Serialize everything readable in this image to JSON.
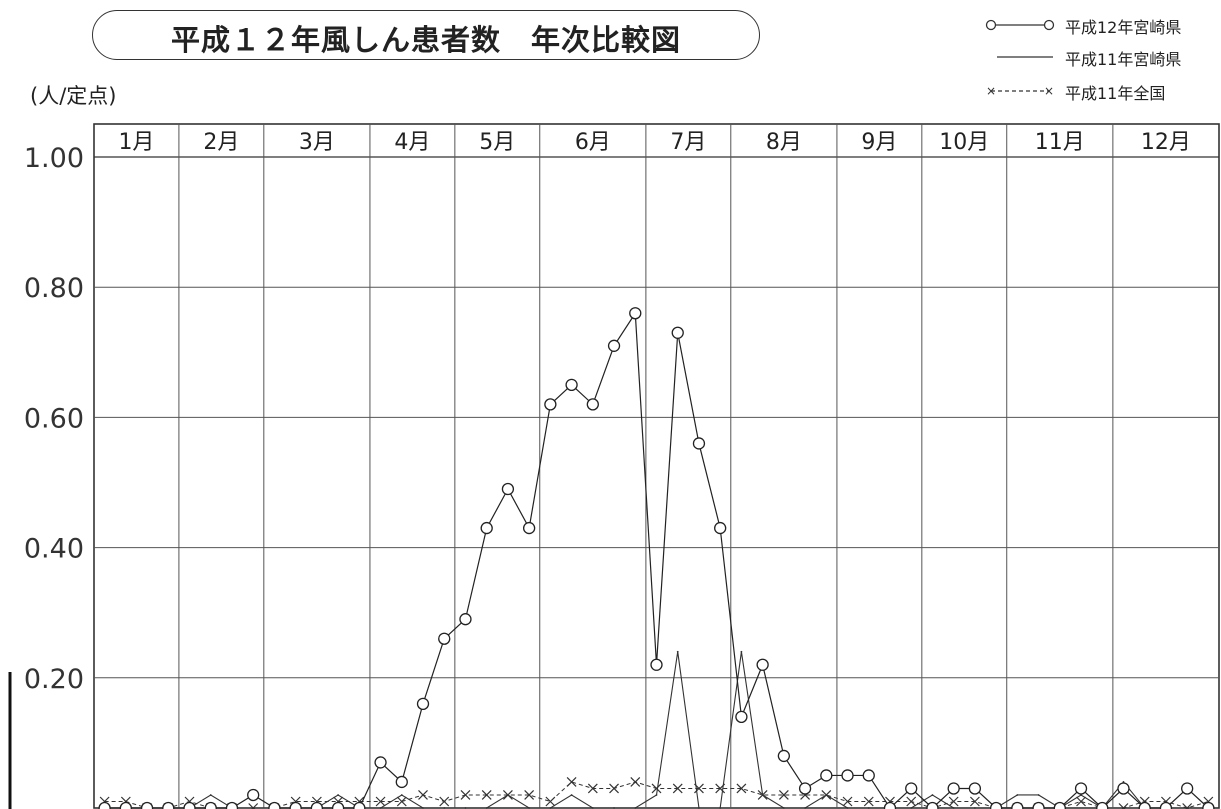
{
  "title": "平成１２年風しん患者数　年次比較図",
  "legend": [
    {
      "key": "s12",
      "label": "平成12年宮崎県"
    },
    {
      "key": "s11",
      "label": "平成11年宮崎県"
    },
    {
      "key": "n11",
      "label": "平成11年全国"
    }
  ],
  "chart_data": {
    "type": "line",
    "ylabel": "(人/定点)",
    "ylim": [
      0,
      1.0
    ],
    "y_ticks": [
      1.0,
      0.8,
      0.6,
      0.4,
      0.2
    ],
    "y_tick_labels": [
      "1.00",
      "0.80",
      "0.60",
      "0.40",
      "0.20"
    ],
    "grid": true,
    "legend_position": "top-right",
    "months": [
      "1月",
      "2月",
      "3月",
      "4月",
      "5月",
      "6月",
      "7月",
      "8月",
      "9月",
      "10月",
      "11月",
      "12月"
    ],
    "weeks_per_month": [
      4,
      4,
      5,
      4,
      4,
      5,
      4,
      5,
      4,
      4,
      5,
      5
    ],
    "series": [
      {
        "name": "平成12年宮崎県",
        "key": "s12",
        "style": "circle-solid",
        "values": [
          0.0,
          0.0,
          0.0,
          0.0,
          0.0,
          0.0,
          0.0,
          0.02,
          0.0,
          0.0,
          0.0,
          0.0,
          0.0,
          0.07,
          0.04,
          0.16,
          0.26,
          0.29,
          0.43,
          0.49,
          0.43,
          0.62,
          0.65,
          0.62,
          0.71,
          0.76,
          0.22,
          0.73,
          0.56,
          0.43,
          0.14,
          0.22,
          0.08,
          0.03,
          0.05,
          0.05,
          0.05,
          0.0,
          0.03,
          0.0,
          0.03,
          0.03,
          0.0,
          0.0,
          0.0,
          0.0,
          0.03,
          0.0,
          0.03,
          0.0,
          0.0,
          0.03,
          0.0
        ]
      },
      {
        "name": "平成11年宮崎県",
        "key": "s11",
        "style": "solid",
        "values": [
          0.0,
          0.0,
          0.0,
          0.0,
          0.0,
          0.02,
          0.0,
          0.0,
          0.0,
          0.0,
          0.0,
          0.02,
          0.0,
          0.0,
          0.02,
          0.0,
          0.0,
          0.0,
          0.0,
          0.02,
          0.0,
          0.0,
          0.02,
          0.0,
          0.0,
          0.0,
          0.02,
          0.24,
          0.0,
          0.0,
          0.24,
          0.02,
          0.0,
          0.0,
          0.02,
          0.0,
          0.0,
          0.0,
          0.0,
          0.02,
          0.0,
          0.0,
          0.0,
          0.02,
          0.02,
          0.0,
          0.02,
          0.0,
          0.04,
          0.0,
          0.0,
          0.0,
          0.0
        ]
      },
      {
        "name": "平成11年全国",
        "key": "n11",
        "style": "cross-dashed",
        "values": [
          0.01,
          0.01,
          0.0,
          0.0,
          0.01,
          0.0,
          0.0,
          0.0,
          0.0,
          0.01,
          0.01,
          0.01,
          0.01,
          0.01,
          0.01,
          0.02,
          0.01,
          0.02,
          0.02,
          0.02,
          0.02,
          0.01,
          0.04,
          0.03,
          0.03,
          0.04,
          0.03,
          0.03,
          0.03,
          0.03,
          0.03,
          0.02,
          0.02,
          0.02,
          0.02,
          0.01,
          0.01,
          0.01,
          0.01,
          0.0,
          0.01,
          0.01,
          0.0,
          0.0,
          0.0,
          0.0,
          0.01,
          0.0,
          0.0,
          0.01,
          0.01,
          0.0,
          0.01
        ]
      }
    ]
  }
}
